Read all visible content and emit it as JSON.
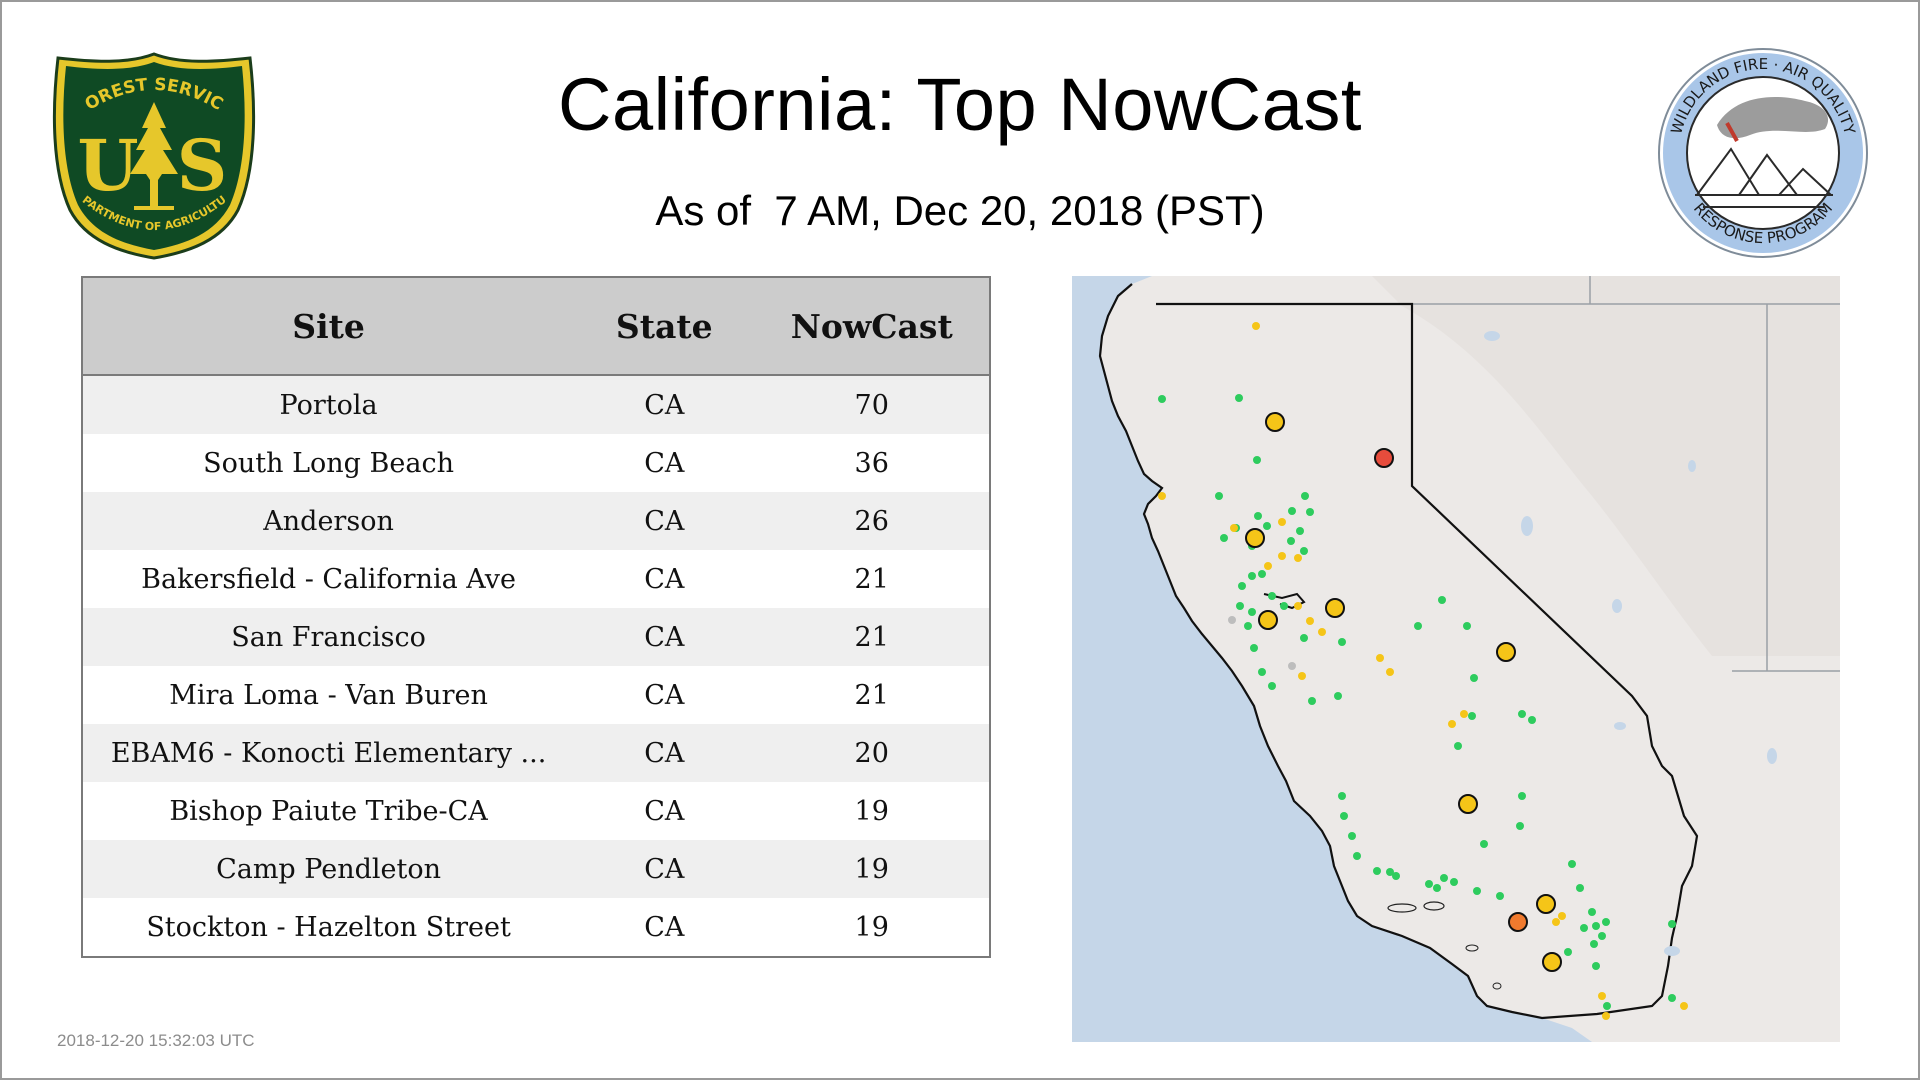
{
  "header": {
    "title": "California: Top NowCast",
    "subtitle": "As of  7 AM, Dec 20, 2018 (PST)"
  },
  "logos": {
    "left": {
      "name": "forest-service-shield",
      "top_text": "FOREST SERVICE",
      "letters": "U S",
      "bottom_text": "DEPARTMENT OF AGRICULTURE"
    },
    "right": {
      "name": "wildland-fire-air-quality-seal",
      "top_text": "WILDLAND FIRE · AIR QUALITY",
      "bottom_text": "RESPONSE PROGRAM"
    }
  },
  "table": {
    "columns": [
      "Site",
      "State",
      "NowCast"
    ],
    "rows": [
      [
        "Portola",
        "CA",
        "70"
      ],
      [
        "South Long Beach",
        "CA",
        "36"
      ],
      [
        "Anderson",
        "CA",
        "26"
      ],
      [
        "Bakersfield - California Ave",
        "CA",
        "21"
      ],
      [
        "San Francisco",
        "CA",
        "21"
      ],
      [
        "Mira Loma - Van Buren",
        "CA",
        "21"
      ],
      [
        "EBAM6 - Konocti Elementary ...",
        "CA",
        "20"
      ],
      [
        "Bishop Paiute Tribe-CA",
        "CA",
        "19"
      ],
      [
        "Camp Pendleton",
        "CA",
        "19"
      ],
      [
        "Stockton - Hazelton Street",
        "CA",
        "19"
      ]
    ]
  },
  "map": {
    "colors": {
      "ocean": "#c5d6e8",
      "land": "#ece9e7",
      "good": "#2ecc5e",
      "moderate": "#f5c518",
      "usg": "#f07a2e",
      "unhealthy": "#e74c3c",
      "no_data": "#bdbdbd"
    }
  },
  "footer": {
    "timestamp": "2018-12-20 15:32:03 UTC"
  }
}
